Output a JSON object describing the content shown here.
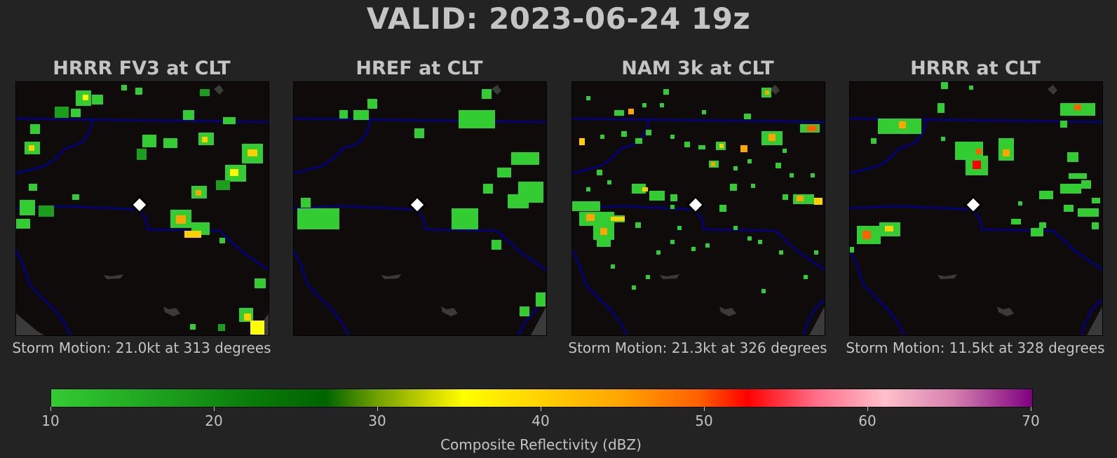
{
  "title": "VALID: 2023-06-24 19z",
  "panels": [
    {
      "title": "HRRR FV3 at CLT",
      "storm_motion": "Storm Motion: 21.0kt at 313 degrees"
    },
    {
      "title": "HREF at CLT",
      "storm_motion": ""
    },
    {
      "title": "NAM 3k at CLT",
      "storm_motion": "Storm Motion: 21.3kt at 326 degrees"
    },
    {
      "title": "HRRR at CLT",
      "storm_motion": "Storm Motion: 11.5kt at 328 degrees"
    }
  ],
  "colorbar": {
    "label": "Composite Reflectivity (dBZ)",
    "ticks": [
      "10",
      "20",
      "30",
      "40",
      "50",
      "60",
      "70"
    ],
    "min": 10,
    "max": 70,
    "colors": [
      "#33cc33",
      "#006400",
      "#ffff00",
      "#ffa500",
      "#ff0000",
      "#ffc0cb",
      "#800080"
    ]
  },
  "colors": {
    "background": "#232323",
    "map_background": "#0f0b0b",
    "state_borders": "#00008b",
    "station_marker": "#ffffff"
  }
}
